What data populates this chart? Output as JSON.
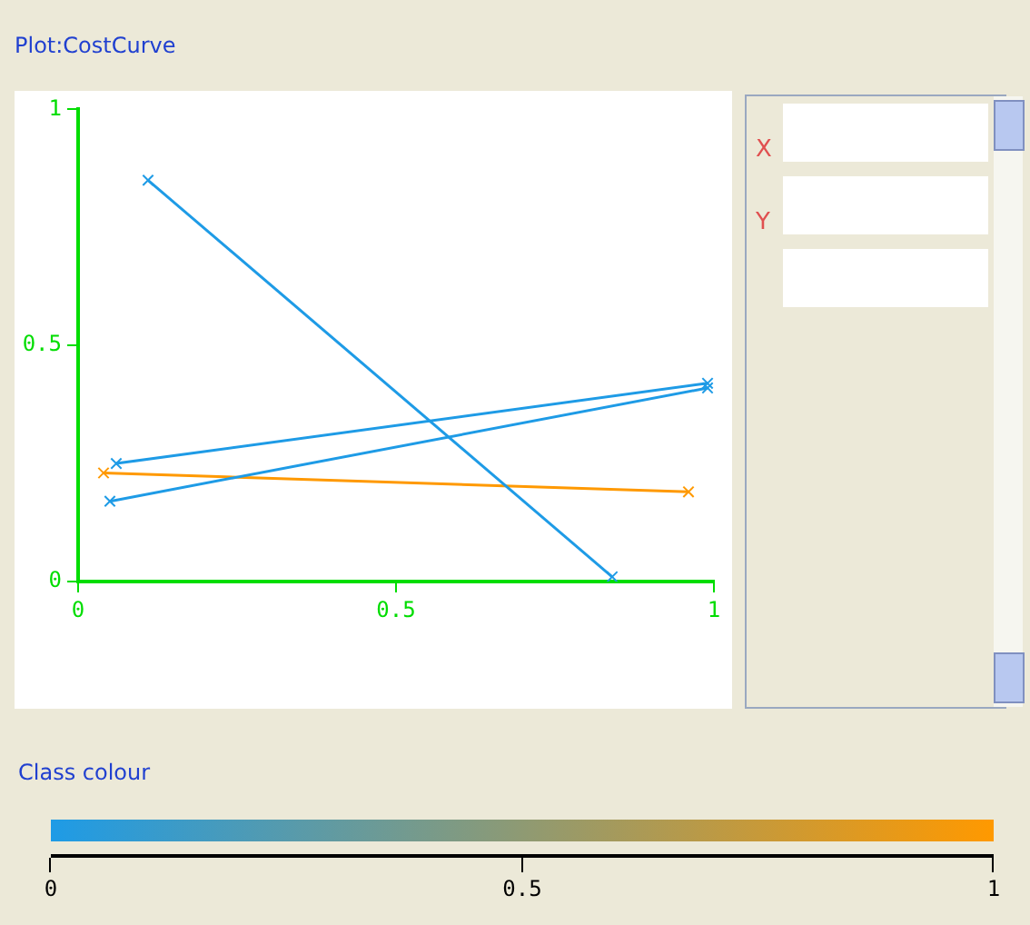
{
  "chart_data": {
    "type": "line",
    "title": "Plot:CostCurve",
    "clabel": "Class colour",
    "clim": [
      0,
      1
    ],
    "cticks": [
      0,
      0.5,
      1
    ],
    "xlim": [
      0,
      1
    ],
    "ylim": [
      0,
      1
    ],
    "xticks": [
      0,
      0.5,
      1
    ],
    "yticks": [
      0,
      0.5,
      1
    ],
    "grid": false,
    "legend": false,
    "marker": "cross",
    "line_style": "solid",
    "annotations": [
      "X",
      "Y"
    ],
    "series": [
      {
        "color": "#1e9be6",
        "x": [
          0.11,
          0.84
        ],
        "values": [
          0.85,
          0.01
        ]
      },
      {
        "color": "#1e9be6",
        "x": [
          0.06,
          0.99
        ],
        "values": [
          0.25,
          0.42
        ]
      },
      {
        "color": "#1e9be6",
        "x": [
          0.05,
          0.99
        ],
        "values": [
          0.17,
          0.41
        ]
      },
      {
        "color": "#ff9900",
        "x": [
          0.04,
          0.96
        ],
        "values": [
          0.23,
          0.19
        ]
      }
    ]
  }
}
